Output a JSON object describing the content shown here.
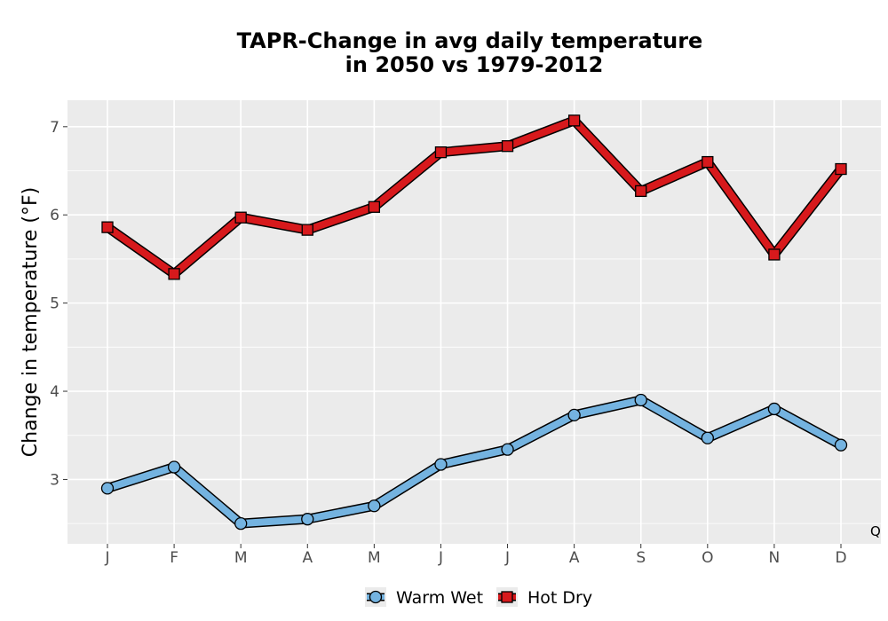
{
  "chart_data": {
    "type": "line",
    "title_line1": "TAPR-Change in avg daily temperature",
    "title_line2": "in 2050 vs 1979-2012",
    "xlabel": "",
    "ylabel": "Change in temperature (°F)",
    "categories": [
      "J",
      "F",
      "M",
      "A",
      "M",
      "J",
      "J",
      "A",
      "S",
      "O",
      "N",
      "D"
    ],
    "ylim": [
      2.27,
      7.3
    ],
    "yticks": [
      3,
      4,
      5,
      6,
      7
    ],
    "grid": true,
    "legend_position": "bottom",
    "corner_label": "Q",
    "series": [
      {
        "name": "Warm Wet",
        "color": "#74b3e0",
        "marker": "circle",
        "values": [
          2.9,
          3.14,
          2.5,
          2.55,
          2.7,
          3.17,
          3.34,
          3.73,
          3.9,
          3.47,
          3.8,
          3.39
        ]
      },
      {
        "name": "Hot Dry",
        "color": "#d7191c",
        "marker": "square",
        "values": [
          5.86,
          5.33,
          5.97,
          5.83,
          6.09,
          6.71,
          6.78,
          7.07,
          6.27,
          6.6,
          5.55,
          6.52
        ]
      }
    ]
  }
}
